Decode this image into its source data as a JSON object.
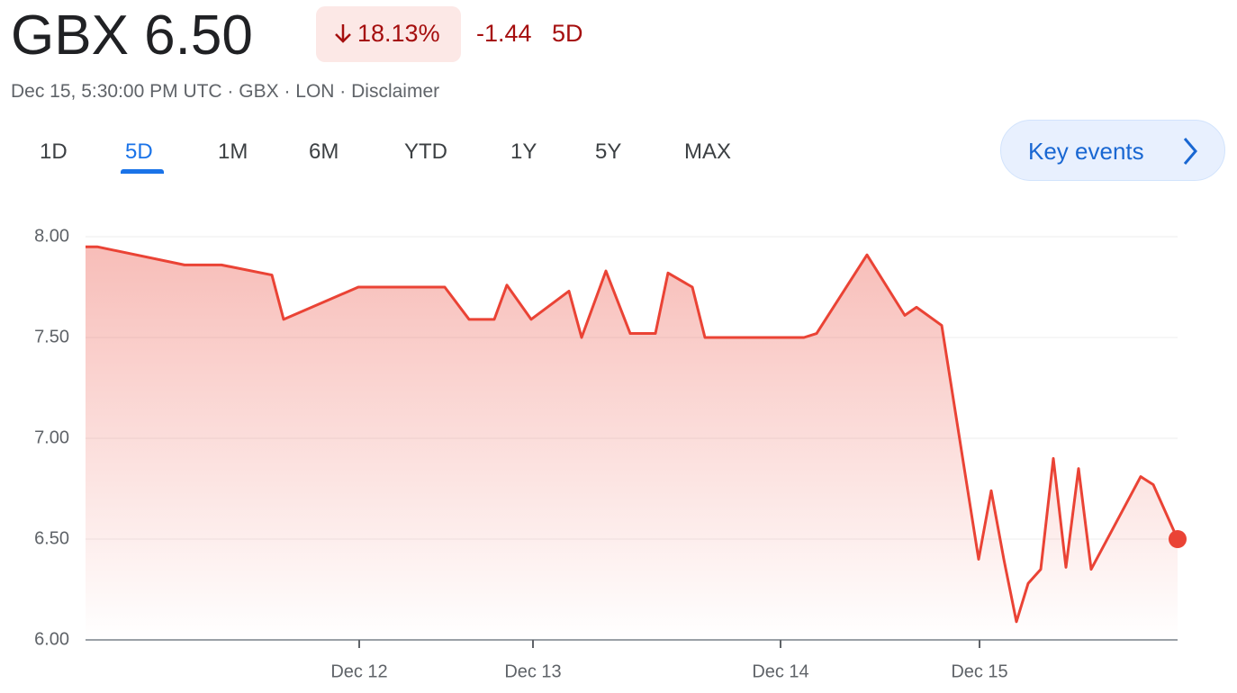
{
  "header": {
    "price": "GBX 6.50",
    "change_pct": "18.13%",
    "change_abs": "-1.44",
    "period": "5D",
    "meta": "Dec 15, 5:30:00 PM UTC · GBX · LON · Disclaimer"
  },
  "tabs": {
    "items": [
      "1D",
      "5D",
      "1M",
      "6M",
      "YTD",
      "1Y",
      "5Y",
      "MAX"
    ],
    "active": 1
  },
  "key_events": "Key events",
  "chart_data": {
    "type": "line",
    "color": "#ea4335",
    "grid": true,
    "x": [
      0,
      13,
      110,
      151,
      207,
      220,
      303,
      345,
      399,
      426,
      454,
      468,
      495,
      537,
      551,
      578,
      605,
      633,
      647,
      674,
      688,
      798,
      812,
      868,
      910,
      923,
      951,
      992,
      1006,
      1020,
      1034,
      1047,
      1061,
      1075,
      1089,
      1103,
      1117,
      1172,
      1186,
      1213
    ],
    "values": [
      7.95,
      7.95,
      7.86,
      7.86,
      7.81,
      7.59,
      7.75,
      7.75,
      7.75,
      7.59,
      7.59,
      7.76,
      7.59,
      7.73,
      7.5,
      7.83,
      7.52,
      7.52,
      7.82,
      7.75,
      7.5,
      7.5,
      7.52,
      7.91,
      7.61,
      7.65,
      7.56,
      6.4,
      6.74,
      6.4,
      6.09,
      6.28,
      6.35,
      6.9,
      6.36,
      6.85,
      6.35,
      6.81,
      6.77,
      6.5
    ],
    "xlim": [
      0,
      1213
    ],
    "xticks": [
      {
        "value": 304,
        "label": "Dec 12"
      },
      {
        "value": 497,
        "label": "Dec 13"
      },
      {
        "value": 772,
        "label": "Dec 14"
      },
      {
        "value": 993,
        "label": "Dec 15"
      }
    ],
    "ylim": [
      6,
      8
    ],
    "yticks": [
      {
        "value": 6,
        "label": "6.00"
      },
      {
        "value": 6.5,
        "label": "6.50"
      },
      {
        "value": 7,
        "label": "7.00"
      },
      {
        "value": 7.5,
        "label": "7.50"
      },
      {
        "value": 8,
        "label": "8.00"
      }
    ]
  }
}
